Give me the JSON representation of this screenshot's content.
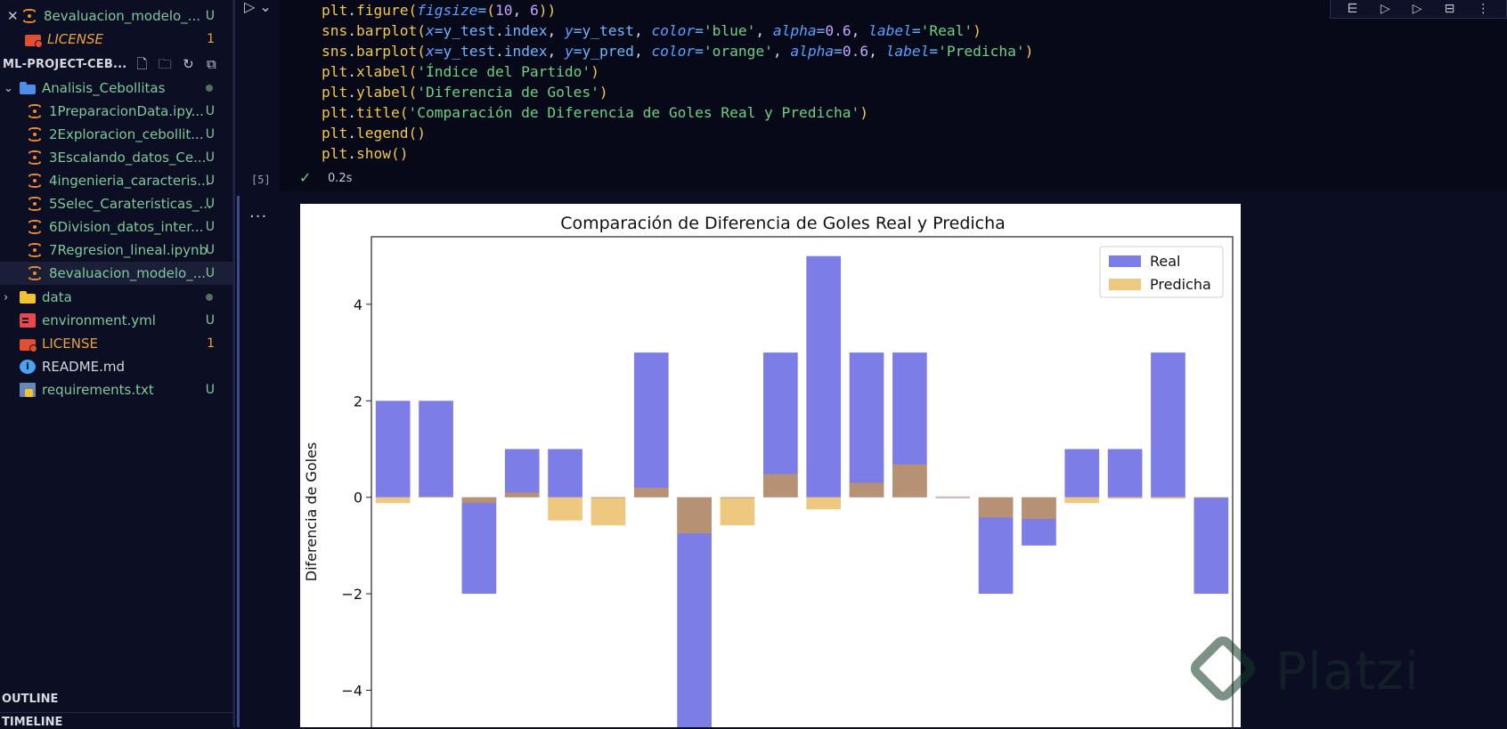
{
  "sidebar": {
    "open_editor": {
      "label": "8evaluacion_modelo_...",
      "badge": "U"
    },
    "open_license": {
      "label": "LICENSE",
      "badge": "1"
    },
    "project_title": "ML-PROJECT-CEB...",
    "tree": [
      {
        "label": "Analisis_Cebollitas",
        "type": "folder-open",
        "badge": ""
      },
      {
        "label": "1PreparacionData.ipy...",
        "type": "notebook",
        "badge": "U"
      },
      {
        "label": "2Exploracion_cebollit...",
        "type": "notebook",
        "badge": "U"
      },
      {
        "label": "3Escalando_datos_Ce...",
        "type": "notebook",
        "badge": "U"
      },
      {
        "label": "4ingenieria_caracteris...",
        "type": "notebook",
        "badge": "U"
      },
      {
        "label": "5Selec_Carateristicas_...",
        "type": "notebook",
        "badge": "U"
      },
      {
        "label": "6Division_datos_inter...",
        "type": "notebook",
        "badge": "U"
      },
      {
        "label": "7Regresion_lineal.ipynb",
        "type": "notebook",
        "badge": "U"
      },
      {
        "label": "8evaluacion_modelo_...",
        "type": "notebook",
        "badge": "U"
      },
      {
        "label": "data",
        "type": "folder",
        "badge": ""
      },
      {
        "label": "environment.yml",
        "type": "yml",
        "badge": "U"
      },
      {
        "label": "LICENSE",
        "type": "license",
        "badge": "1"
      },
      {
        "label": "README.md",
        "type": "info",
        "badge": ""
      },
      {
        "label": "requirements.txt",
        "type": "txt",
        "badge": "U"
      }
    ],
    "outline": "OUTLINE",
    "timeline": "TIMELINE"
  },
  "cell": {
    "exec_count": "[5]",
    "status_time": "0.2s",
    "code": [
      "plt.figure(figsize=(10, 6))",
      "sns.barplot(x=y_test.index, y=y_test, color='blue', alpha=0.6, label='Real')",
      "sns.barplot(x=y_test.index, y=y_pred, color='orange', alpha=0.6, label='Predicha')",
      "plt.xlabel('Índice del Partido')",
      "plt.ylabel('Diferencia de Goles')",
      "plt.title('Comparación de Diferencia de Goles Real y Predicha')",
      "plt.legend()",
      "plt.show()"
    ],
    "more_actions": "..."
  },
  "watermark": "Platzi",
  "chart_data": {
    "type": "bar",
    "title": "Comparación de Diferencia de Goles Real y Predicha",
    "xlabel": "",
    "ylabel": "Diferencia de Goles",
    "ylim": [
      -4.6,
      5.4
    ],
    "yticks": [
      -4,
      -2,
      0,
      2,
      4
    ],
    "legend_position": "top-right",
    "series": [
      {
        "name": "Real",
        "color": "#1f1fd6",
        "opacity": 0.58,
        "values": [
          2,
          2,
          -2,
          1,
          1,
          0,
          3,
          -5,
          0,
          3,
          5,
          3,
          3,
          0,
          -2,
          -1,
          1,
          1,
          3,
          -2
        ]
      },
      {
        "name": "Predicha",
        "color": "#e0a020",
        "opacity": 0.58,
        "values": [
          -0.12,
          0.02,
          -0.12,
          0.1,
          -0.48,
          -0.58,
          0.2,
          -0.75,
          -0.58,
          0.48,
          -0.25,
          0.3,
          0.68,
          0.02,
          -0.42,
          -0.45,
          -0.12,
          -0.03,
          -0.03,
          0.0
        ]
      }
    ]
  }
}
